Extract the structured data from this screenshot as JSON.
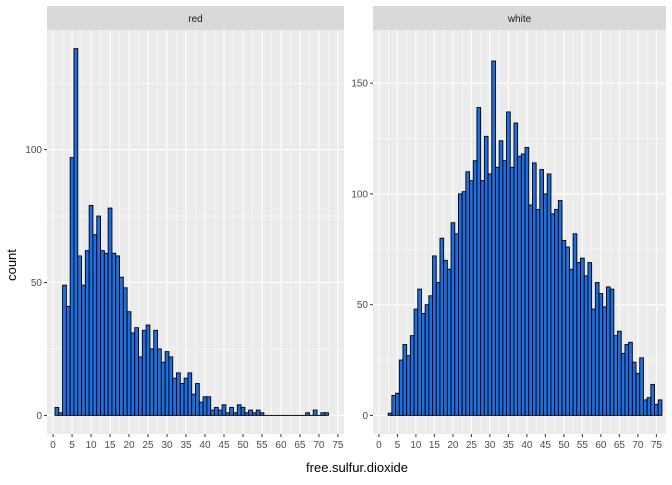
{
  "chart_data": {
    "type": "bar",
    "subtype": "faceted-histogram",
    "xlabel": "free.sulfur.dioxide",
    "ylabel": "count",
    "bin_width": 1,
    "fill_color": "#1f6fe0",
    "outline_color": "#000000",
    "panel_background": "#ebebeb",
    "strip_background": "#d9d9d9",
    "grid": true,
    "facets": [
      {
        "name": "red",
        "xlim": [
          -1.6,
          76.6
        ],
        "ylim": [
          -7,
          145
        ],
        "x_ticks": [
          0,
          5,
          10,
          15,
          20,
          25,
          30,
          35,
          40,
          45,
          50,
          55,
          60,
          65,
          70,
          75
        ],
        "y_ticks": [
          0,
          50,
          100
        ],
        "x": [
          1,
          2,
          3,
          4,
          5,
          6,
          7,
          8,
          9,
          10,
          11,
          12,
          13,
          14,
          15,
          16,
          17,
          18,
          19,
          20,
          21,
          22,
          23,
          24,
          25,
          26,
          27,
          28,
          29,
          30,
          31,
          32,
          33,
          34,
          35,
          36,
          37,
          38,
          39,
          40,
          41,
          42,
          43,
          44,
          45,
          46,
          47,
          48,
          49,
          50,
          51,
          52,
          53,
          54,
          55,
          56,
          57,
          58,
          59,
          60,
          61,
          62,
          63,
          64,
          65,
          66,
          67,
          68,
          69,
          70,
          71,
          72
        ],
        "counts": [
          3,
          1,
          49,
          41,
          97,
          138,
          60,
          49,
          62,
          79,
          68,
          75,
          62,
          61,
          78,
          61,
          60,
          52,
          48,
          39,
          31,
          33,
          22,
          32,
          34,
          25,
          32,
          25,
          20,
          24,
          22,
          14,
          16,
          12,
          14,
          16,
          8,
          12,
          5,
          7,
          7,
          2,
          3,
          2,
          4,
          1,
          3,
          1,
          4,
          3,
          1,
          2,
          1,
          2,
          1,
          0,
          0,
          0,
          0,
          0,
          0,
          0,
          0,
          0,
          0,
          0,
          1,
          0,
          2,
          0,
          1,
          1
        ]
      },
      {
        "name": "white",
        "xlim": [
          -1.6,
          77.6
        ],
        "ylim": [
          -8.4,
          174
        ],
        "x_ticks": [
          0,
          5,
          10,
          15,
          20,
          25,
          30,
          35,
          40,
          45,
          50,
          55,
          60,
          65,
          70,
          75
        ],
        "y_ticks": [
          0,
          50,
          100,
          150
        ],
        "x": [
          3,
          4,
          5,
          6,
          7,
          8,
          9,
          10,
          11,
          12,
          13,
          14,
          15,
          16,
          17,
          18,
          19,
          20,
          21,
          22,
          23,
          24,
          25,
          26,
          27,
          28,
          29,
          30,
          31,
          32,
          33,
          34,
          35,
          36,
          37,
          38,
          39,
          40,
          41,
          42,
          43,
          44,
          45,
          46,
          47,
          48,
          49,
          50,
          51,
          52,
          53,
          54,
          55,
          56,
          57,
          58,
          59,
          60,
          61,
          62,
          63,
          64,
          65,
          66,
          67,
          68,
          69,
          70,
          71,
          72,
          73,
          74,
          75,
          76
        ],
        "counts": [
          1,
          9,
          10,
          25,
          32,
          27,
          36,
          48,
          57,
          46,
          50,
          54,
          72,
          60,
          80,
          70,
          66,
          87,
          82,
          100,
          101,
          110,
          106,
          115,
          139,
          106,
          126,
          109,
          160,
          112,
          124,
          115,
          137,
          112,
          132,
          117,
          118,
          121,
          95,
          114,
          93,
          111,
          100,
          109,
          91,
          93,
          97,
          79,
          76,
          66,
          82,
          69,
          71,
          63,
          69,
          48,
          60,
          55,
          49,
          58,
          57,
          36,
          38,
          28,
          32,
          33,
          24,
          19,
          26,
          7,
          8,
          14,
          5,
          7
        ]
      }
    ]
  }
}
